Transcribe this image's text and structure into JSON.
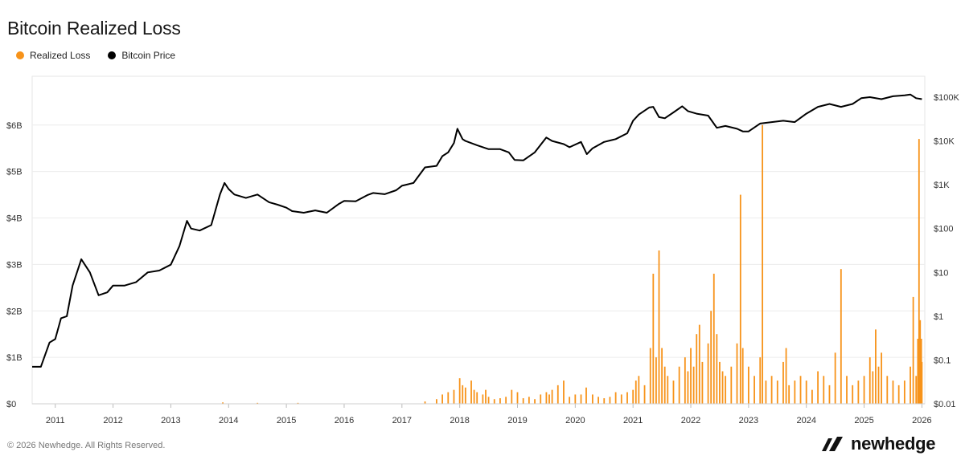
{
  "header": {
    "title": "Bitcoin Realized Loss"
  },
  "legend": [
    {
      "label": "Realized Loss",
      "color": "#f7931a"
    },
    {
      "label": "Bitcoin Price",
      "color": "#000000"
    }
  ],
  "footer": {
    "copyright": "© 2026 Newhedge. All Rights Reserved.",
    "brand": "newhedge"
  },
  "chart_data": {
    "type": "area",
    "title": "Bitcoin Realized Loss",
    "x_axis": {
      "ticks": [
        "2011",
        "2012",
        "2013",
        "2014",
        "2015",
        "2016",
        "2017",
        "2018",
        "2019",
        "2020",
        "2021",
        "2022",
        "2023",
        "2024",
        "2025",
        "2026"
      ],
      "range": [
        2010.6,
        2026.05
      ]
    },
    "y_left": {
      "ticks": [
        "$0",
        "$1B",
        "$2B",
        "$3B",
        "$4B",
        "$5B",
        "$6B"
      ],
      "values": [
        0,
        1,
        2,
        3,
        4,
        5,
        6
      ],
      "unit": "billion USD",
      "range": [
        0,
        7.05
      ]
    },
    "y_right": {
      "ticks": [
        "$0.01",
        "$0.1",
        "$1",
        "$10",
        "$100",
        "$1K",
        "$10K",
        "$100K"
      ],
      "values": [
        0.01,
        0.1,
        1,
        10,
        100,
        1000,
        10000,
        100000
      ],
      "scale": "log",
      "range": [
        0.01,
        300000
      ]
    },
    "grid": true,
    "legend_position": "top-left",
    "series": [
      {
        "name": "Realized Loss",
        "axis": "left",
        "style": "bars",
        "color": "#f7931a",
        "x": [
          2013.9,
          2014.5,
          2015.2,
          2017.4,
          2017.6,
          2017.7,
          2017.8,
          2017.9,
          2018.0,
          2018.05,
          2018.1,
          2018.2,
          2018.25,
          2018.3,
          2018.4,
          2018.45,
          2018.5,
          2018.6,
          2018.7,
          2018.8,
          2018.9,
          2019.0,
          2019.1,
          2019.2,
          2019.3,
          2019.4,
          2019.5,
          2019.55,
          2019.6,
          2019.7,
          2019.8,
          2019.9,
          2020.0,
          2020.1,
          2020.19,
          2020.3,
          2020.4,
          2020.5,
          2020.6,
          2020.7,
          2020.8,
          2020.9,
          2021.0,
          2021.05,
          2021.1,
          2021.2,
          2021.3,
          2021.35,
          2021.4,
          2021.45,
          2021.5,
          2021.55,
          2021.6,
          2021.7,
          2021.8,
          2021.9,
          2021.95,
          2022.0,
          2022.05,
          2022.1,
          2022.15,
          2022.2,
          2022.3,
          2022.35,
          2022.4,
          2022.45,
          2022.5,
          2022.55,
          2022.6,
          2022.7,
          2022.8,
          2022.86,
          2022.9,
          2023.0,
          2023.1,
          2023.2,
          2023.24,
          2023.3,
          2023.4,
          2023.5,
          2023.6,
          2023.65,
          2023.7,
          2023.8,
          2023.9,
          2024.0,
          2024.1,
          2024.2,
          2024.3,
          2024.4,
          2024.5,
          2024.6,
          2024.7,
          2024.8,
          2024.9,
          2025.0,
          2025.1,
          2025.15,
          2025.2,
          2025.25,
          2025.3,
          2025.4,
          2025.5,
          2025.6,
          2025.7,
          2025.8,
          2025.85,
          2025.9,
          2025.93,
          2025.95,
          2025.97,
          2025.99,
          2026.0
        ],
        "values": [
          0.03,
          0.02,
          0.02,
          0.05,
          0.1,
          0.2,
          0.25,
          0.3,
          0.55,
          0.4,
          0.35,
          0.5,
          0.3,
          0.25,
          0.2,
          0.3,
          0.15,
          0.1,
          0.12,
          0.15,
          0.3,
          0.25,
          0.12,
          0.15,
          0.1,
          0.2,
          0.25,
          0.2,
          0.3,
          0.4,
          0.5,
          0.15,
          0.2,
          0.2,
          0.35,
          0.2,
          0.15,
          0.12,
          0.15,
          0.25,
          0.2,
          0.25,
          0.3,
          0.5,
          0.6,
          0.4,
          1.2,
          2.8,
          1.0,
          3.3,
          1.2,
          0.8,
          0.6,
          0.5,
          0.8,
          1.0,
          0.7,
          1.2,
          0.8,
          1.5,
          1.7,
          0.9,
          1.3,
          2.0,
          2.8,
          1.5,
          0.9,
          0.7,
          0.6,
          0.8,
          1.3,
          4.5,
          1.2,
          0.8,
          0.6,
          1.0,
          6.0,
          0.5,
          0.6,
          0.5,
          0.9,
          1.2,
          0.4,
          0.5,
          0.6,
          0.5,
          0.3,
          0.7,
          0.6,
          0.4,
          1.1,
          2.9,
          0.6,
          0.4,
          0.5,
          0.6,
          1.0,
          0.7,
          1.6,
          0.8,
          1.1,
          0.6,
          0.5,
          0.4,
          0.5,
          0.8,
          2.3,
          0.6,
          1.4,
          5.7,
          1.8,
          1.4,
          0.9
        ]
      },
      {
        "name": "Bitcoin Price",
        "axis": "right",
        "style": "line",
        "color": "#000000",
        "x": [
          2010.6,
          2010.75,
          2010.9,
          2011.0,
          2011.1,
          2011.2,
          2011.3,
          2011.45,
          2011.6,
          2011.75,
          2011.9,
          2012.0,
          2012.2,
          2012.4,
          2012.6,
          2012.8,
          2013.0,
          2013.15,
          2013.28,
          2013.35,
          2013.5,
          2013.7,
          2013.85,
          2013.93,
          2014.0,
          2014.1,
          2014.3,
          2014.5,
          2014.7,
          2014.85,
          2015.0,
          2015.1,
          2015.3,
          2015.5,
          2015.7,
          2015.9,
          2016.0,
          2016.2,
          2016.4,
          2016.5,
          2016.7,
          2016.9,
          2017.0,
          2017.2,
          2017.4,
          2017.6,
          2017.7,
          2017.8,
          2017.9,
          2017.96,
          2018.05,
          2018.1,
          2018.3,
          2018.5,
          2018.7,
          2018.85,
          2018.95,
          2019.1,
          2019.3,
          2019.5,
          2019.6,
          2019.8,
          2019.9,
          2020.1,
          2020.2,
          2020.3,
          2020.5,
          2020.7,
          2020.9,
          2021.0,
          2021.1,
          2021.28,
          2021.35,
          2021.45,
          2021.55,
          2021.7,
          2021.85,
          2021.95,
          2022.1,
          2022.3,
          2022.45,
          2022.6,
          2022.8,
          2022.9,
          2023.0,
          2023.2,
          2023.4,
          2023.6,
          2023.8,
          2024.0,
          2024.2,
          2024.4,
          2024.6,
          2024.8,
          2024.95,
          2025.1,
          2025.3,
          2025.5,
          2025.7,
          2025.8,
          2025.9,
          2026.0
        ],
        "values": [
          0.07,
          0.07,
          0.25,
          0.3,
          0.9,
          1.0,
          5.0,
          20,
          10,
          3,
          3.5,
          5,
          5,
          6,
          10,
          11,
          15,
          40,
          150,
          100,
          90,
          120,
          600,
          1100,
          800,
          600,
          500,
          600,
          400,
          350,
          300,
          250,
          230,
          260,
          230,
          360,
          430,
          420,
          580,
          650,
          610,
          750,
          950,
          1100,
          2500,
          2700,
          4500,
          5500,
          9000,
          19000,
          11000,
          10000,
          8000,
          6500,
          6500,
          5500,
          3700,
          3600,
          5500,
          12000,
          10000,
          8500,
          7200,
          9500,
          5000,
          6800,
          9500,
          11000,
          15000,
          29000,
          40000,
          58000,
          60000,
          35000,
          33000,
          45000,
          62000,
          48000,
          42000,
          38000,
          20000,
          22000,
          19000,
          16500,
          16500,
          25000,
          27000,
          29000,
          27000,
          42000,
          60000,
          70000,
          60000,
          70000,
          95000,
          100000,
          90000,
          105000,
          110000,
          115000,
          95000,
          90000
        ]
      }
    ]
  }
}
